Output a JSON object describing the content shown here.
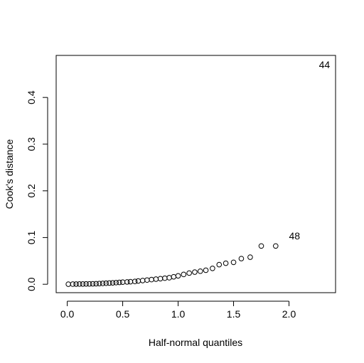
{
  "chart_data": {
    "type": "scatter",
    "xlabel": "Half-normal quantiles",
    "ylabel": "Cook's distance",
    "xlim": [
      -0.1,
      2.42
    ],
    "ylim": [
      -0.018,
      0.49
    ],
    "xticks": [
      0.0,
      0.5,
      1.0,
      1.5,
      2.0
    ],
    "yticks": [
      0.0,
      0.1,
      0.2,
      0.3,
      0.4
    ],
    "xtick_labels": [
      "0.0",
      "0.5",
      "1.0",
      "1.5",
      "2.0"
    ],
    "ytick_labels": [
      "0.0",
      "0.1",
      "0.2",
      "0.3",
      "0.4"
    ],
    "point_labels": [
      {
        "text": "44",
        "x": 2.32,
        "y": 0.47
      },
      {
        "text": "48",
        "x": 2.05,
        "y": 0.104
      }
    ],
    "x": [
      0.01,
      0.05,
      0.08,
      0.11,
      0.14,
      0.17,
      0.2,
      0.23,
      0.26,
      0.29,
      0.32,
      0.35,
      0.38,
      0.41,
      0.44,
      0.47,
      0.5,
      0.54,
      0.57,
      0.61,
      0.64,
      0.68,
      0.72,
      0.76,
      0.8,
      0.84,
      0.88,
      0.92,
      0.96,
      1.0,
      1.05,
      1.1,
      1.15,
      1.2,
      1.25,
      1.31,
      1.37,
      1.43,
      1.5,
      1.57,
      1.65,
      1.75,
      1.88
    ],
    "y": [
      0.0002,
      0.0003,
      0.0004,
      0.0005,
      0.0006,
      0.0007,
      0.0008,
      0.001,
      0.0012,
      0.0015,
      0.0018,
      0.0022,
      0.0026,
      0.003,
      0.0035,
      0.004,
      0.0045,
      0.005,
      0.0055,
      0.006,
      0.007,
      0.008,
      0.009,
      0.01,
      0.011,
      0.012,
      0.013,
      0.014,
      0.016,
      0.018,
      0.021,
      0.024,
      0.026,
      0.028,
      0.03,
      0.034,
      0.042,
      0.045,
      0.047,
      0.055,
      0.058,
      0.082,
      0.082
    ]
  }
}
